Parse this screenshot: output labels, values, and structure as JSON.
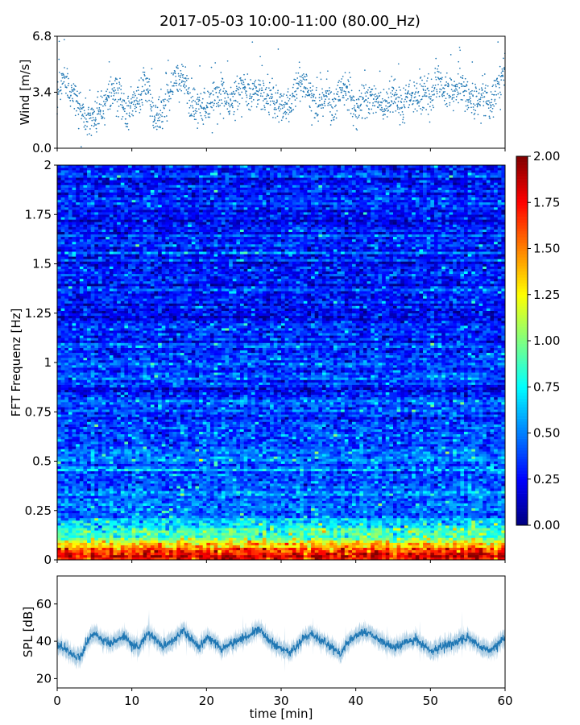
{
  "title": "2017-05-03 10:00-11:00 (80.00_Hz)",
  "chart_data": [
    {
      "type": "scatter",
      "panel": "wind",
      "ylabel": "Wind [m/s]",
      "xlabel": "",
      "xlim": [
        0,
        60
      ],
      "ylim": [
        0,
        6.8
      ],
      "yticks": [
        0.0,
        3.4,
        6.8
      ],
      "ytick_labels": [
        "0.0",
        "3.4",
        "6.8"
      ],
      "color": "#1f77b4",
      "anchors_x": [
        0,
        1,
        2,
        3,
        4,
        5,
        6,
        7,
        8,
        9,
        10,
        11,
        12,
        13,
        14,
        15,
        16,
        17,
        18,
        19,
        20,
        21,
        22,
        23,
        24,
        25,
        26,
        27,
        28,
        29,
        30,
        31,
        32,
        33,
        34,
        35,
        36,
        37,
        38,
        39,
        40,
        41,
        42,
        43,
        44,
        45,
        46,
        47,
        48,
        49,
        50,
        51,
        52,
        53,
        54,
        55,
        56,
        57,
        58,
        59,
        60
      ],
      "anchors_y": [
        3.6,
        4.3,
        3.4,
        2.5,
        1.6,
        2.0,
        2.4,
        3.4,
        3.3,
        2.4,
        2.6,
        3.3,
        3.8,
        2.0,
        2.1,
        3.1,
        4.5,
        4.1,
        2.6,
        2.3,
        2.6,
        3.2,
        3.0,
        2.6,
        3.3,
        3.6,
        3.1,
        3.5,
        3.1,
        3.0,
        2.6,
        2.5,
        3.6,
        4.2,
        3.0,
        2.5,
        3.3,
        2.2,
        3.9,
        3.6,
        2.2,
        3.1,
        2.9,
        3.1,
        2.3,
        3.3,
        2.5,
        3.1,
        3.2,
        3.4,
        3.2,
        4.1,
        3.5,
        3.4,
        3.9,
        3.2,
        2.7,
        3.3,
        2.6,
        3.6,
        4.6
      ],
      "n_points": 1800,
      "spread": 0.55
    },
    {
      "type": "heatmap",
      "panel": "spectrogram",
      "ylabel": "FFT Frequenz [Hz]",
      "xlabel": "",
      "xlim": [
        0,
        60
      ],
      "ylim": [
        0,
        2
      ],
      "yticks": [
        0,
        0.25,
        0.5,
        0.75,
        1,
        1.25,
        1.5,
        1.75,
        2
      ],
      "ytick_labels": [
        "0",
        "0.25",
        "0.5",
        "0.75",
        "1",
        "1.25",
        "1.5",
        "1.75",
        "2"
      ],
      "colormap": "jet",
      "clim": [
        0.0,
        2.0
      ],
      "n_time_bins": 120,
      "n_freq_bins": 160,
      "freq_profile_f": [
        0,
        0.04,
        0.08,
        0.12,
        0.16,
        0.2,
        0.3,
        0.5,
        0.75,
        1.0,
        1.25,
        1.5,
        1.75,
        2.0
      ],
      "freq_profile_level": [
        1.8,
        1.7,
        1.3,
        0.9,
        0.7,
        0.55,
        0.45,
        0.4,
        0.36,
        0.35,
        0.3,
        0.32,
        0.3,
        0.28
      ],
      "colorbar": {
        "ticks": [
          0.0,
          0.25,
          0.5,
          0.75,
          1.0,
          1.25,
          1.5,
          1.75,
          2.0
        ],
        "tick_labels": [
          "0.00",
          "0.25",
          "0.50",
          "0.75",
          "1.00",
          "1.25",
          "1.50",
          "1.75",
          "2.00"
        ]
      }
    },
    {
      "type": "area",
      "panel": "spl",
      "ylabel": "SPL [dB]",
      "xlabel": "time [min]",
      "xlim": [
        0,
        60
      ],
      "ylim": [
        15,
        75
      ],
      "yticks": [
        20,
        40,
        60
      ],
      "ytick_labels": [
        "20",
        "40",
        "60"
      ],
      "xticks": [
        0,
        10,
        20,
        30,
        40,
        50,
        60
      ],
      "xtick_labels": [
        "0",
        "10",
        "20",
        "30",
        "40",
        "50",
        "60"
      ],
      "color": "#1f77b4",
      "anchors_x": [
        0,
        1,
        2,
        3,
        4,
        5,
        6,
        7,
        8,
        9,
        10,
        11,
        12,
        13,
        14,
        15,
        16,
        17,
        18,
        19,
        20,
        21,
        22,
        23,
        24,
        25,
        26,
        27,
        28,
        29,
        30,
        31,
        32,
        33,
        34,
        35,
        36,
        37,
        38,
        39,
        40,
        41,
        42,
        43,
        44,
        45,
        46,
        47,
        48,
        49,
        50,
        51,
        52,
        53,
        54,
        55,
        56,
        57,
        58,
        59,
        60
      ],
      "anchors_y": [
        38,
        36,
        33,
        31,
        40,
        44,
        41,
        39,
        40,
        43,
        38,
        37,
        44,
        42,
        37,
        39,
        42,
        46,
        41,
        37,
        42,
        40,
        36,
        38,
        40,
        42,
        44,
        47,
        42,
        38,
        36,
        34,
        37,
        42,
        44,
        41,
        39,
        36,
        33,
        40,
        43,
        45,
        44,
        41,
        39,
        37,
        38,
        40,
        41,
        38,
        34,
        36,
        38,
        39,
        40,
        42,
        39,
        36,
        35,
        38,
        42
      ],
      "n_samples": 1800,
      "band_halfwidth": 4
    }
  ]
}
